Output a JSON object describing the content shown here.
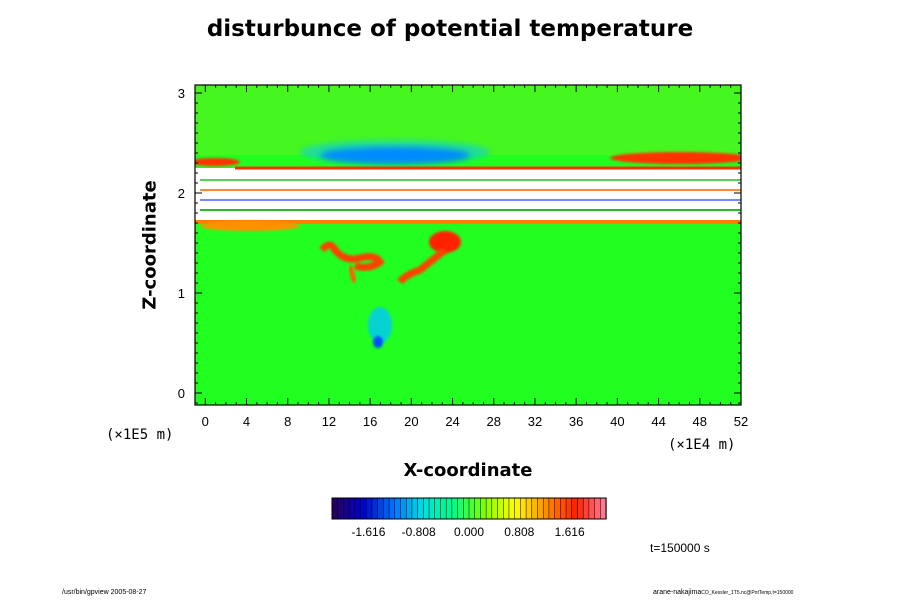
{
  "chart_data": {
    "type": "heatmap",
    "title": "disturbunce of potential temperature",
    "xlabel": "X-coordinate",
    "ylabel": "Z-coordinate",
    "x_unit": "(×1E4 m)",
    "y_unit": "(×1E5 m)",
    "xlim": [
      -1,
      52
    ],
    "ylim": [
      -0.12,
      3.08
    ],
    "x_ticks": [
      0,
      4,
      8,
      12,
      16,
      20,
      24,
      28,
      32,
      36,
      40,
      44,
      48,
      52
    ],
    "y_ticks": [
      0,
      1,
      2,
      3
    ],
    "colorbar": {
      "tick_values": [
        -1.616,
        -0.808,
        0.0,
        0.808,
        1.616
      ],
      "tick_labels": [
        "-1.616",
        "-0.808",
        "0.000",
        "0.808",
        "1.616"
      ],
      "range": [
        -2.2,
        2.2
      ],
      "colormap": [
        "#2a005f",
        "#0000c8",
        "#0070ff",
        "#00e0e0",
        "#00ff80",
        "#80ff00",
        "#ffff00",
        "#ff9000",
        "#ff2000",
        "#ff80a0"
      ]
    },
    "background_value": 0.4,
    "grid": false,
    "annotation": "t=150000 s"
  },
  "footer": {
    "left": "/usr/bin/gpview 2005-08-27",
    "right_main": "arane-nakajima",
    "right_small": "CO_Kessler_1T5.nc@PotTemp,t=150000"
  }
}
